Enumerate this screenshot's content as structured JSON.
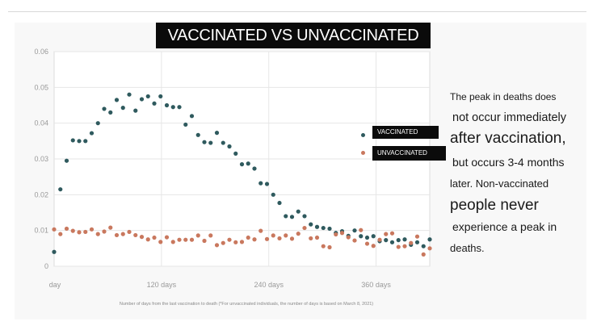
{
  "title": "VACCINATED VS UNVACCINATED",
  "legend": [
    {
      "label": "VACCINATED",
      "color": "#2f5a5e"
    },
    {
      "label": "UNVACCINATED",
      "color": "#c9785e"
    }
  ],
  "side_text": [
    "The peak in deaths does",
    "not occur immediately",
    "after vaccination,",
    "but occurs 3-4 months",
    "later. Non-vaccinated",
    "people never",
    "experience a peak in",
    "deaths."
  ],
  "chart_data": {
    "type": "scatter",
    "title": "VACCINATED VS UNVACCINATED",
    "xlabel": "Number of days from the last vaccination to death (*For unvaccinated individuals, the number of days is based on March 8, 2021)",
    "ylabel": "",
    "xlim": [
      0,
      420
    ],
    "ylim": [
      0,
      0.06
    ],
    "grid": true,
    "legend_position": "right",
    "x_ticks": [
      {
        "value": 0,
        "label": "day"
      },
      {
        "value": 120,
        "label": "120 days"
      },
      {
        "value": 240,
        "label": "240 days"
      },
      {
        "value": 360,
        "label": "360 days"
      }
    ],
    "y_ticks": [
      {
        "value": 0,
        "label": "0"
      },
      {
        "value": 0.01,
        "label": "0.01"
      },
      {
        "value": 0.02,
        "label": "0.02"
      },
      {
        "value": 0.03,
        "label": "0.03"
      },
      {
        "value": 0.04,
        "label": "0.04"
      },
      {
        "value": 0.05,
        "label": "0.05"
      },
      {
        "value": 0.06,
        "label": "0.06"
      }
    ],
    "x_step_days": 7,
    "series": [
      {
        "name": "VACCINATED",
        "color": "#2f5a5e",
        "values": [
          0.004,
          0.0215,
          0.0295,
          0.0352,
          0.035,
          0.035,
          0.0372,
          0.04,
          0.044,
          0.043,
          0.0465,
          0.0443,
          0.048,
          0.0435,
          0.0467,
          0.0475,
          0.0455,
          0.0475,
          0.045,
          0.0445,
          0.0445,
          0.0396,
          0.042,
          0.0367,
          0.0347,
          0.0345,
          0.0373,
          0.0345,
          0.0335,
          0.0315,
          0.0285,
          0.0287,
          0.0273,
          0.0232,
          0.023,
          0.02,
          0.0177,
          0.014,
          0.0138,
          0.0153,
          0.014,
          0.0117,
          0.011,
          0.0107,
          0.0105,
          0.0093,
          0.0098,
          0.0085,
          0.01,
          0.0084,
          0.008,
          0.0084,
          0.007,
          0.0073,
          0.0067,
          0.0073,
          0.0075,
          0.006,
          0.0067,
          0.0056,
          0.0075
        ]
      },
      {
        "name": "UNVACCINATED",
        "color": "#c9785e",
        "values": [
          0.0103,
          0.009,
          0.0105,
          0.0099,
          0.0095,
          0.0096,
          0.0103,
          0.009,
          0.0097,
          0.0108,
          0.0087,
          0.009,
          0.0096,
          0.0087,
          0.0082,
          0.0075,
          0.008,
          0.0068,
          0.0081,
          0.0068,
          0.0074,
          0.0074,
          0.0074,
          0.0086,
          0.0071,
          0.0086,
          0.0059,
          0.0065,
          0.0074,
          0.0067,
          0.0068,
          0.008,
          0.0075,
          0.0099,
          0.0076,
          0.0086,
          0.0078,
          0.0086,
          0.0077,
          0.0091,
          0.0107,
          0.0078,
          0.008,
          0.0056,
          0.0053,
          0.0089,
          0.0093,
          0.0081,
          0.0072,
          0.0101,
          0.0063,
          0.0057,
          0.0074,
          0.009,
          0.0092,
          0.0054,
          0.0056,
          0.0065,
          0.0083,
          0.0033,
          0.005
        ]
      }
    ]
  }
}
